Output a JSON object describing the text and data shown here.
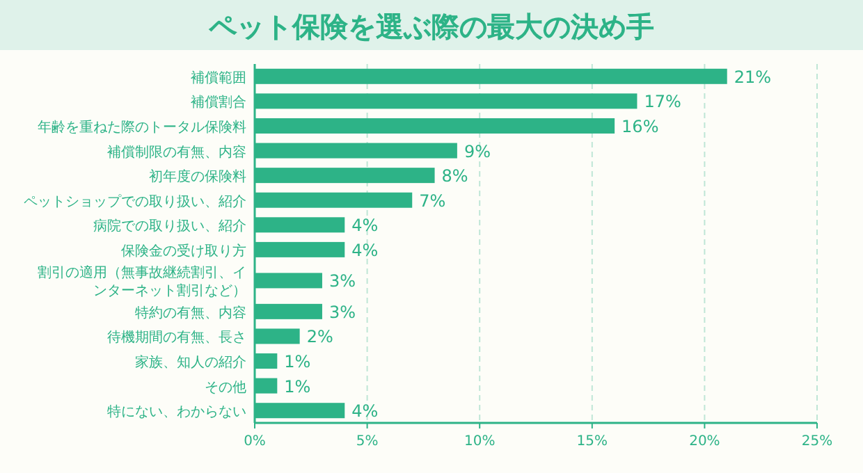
{
  "chart_data": {
    "type": "bar",
    "orientation": "horizontal",
    "title": "ペット保険を選ぶ際の最大の決め手",
    "categories": [
      "補償範囲",
      "補償割合",
      "年齢を重ねた際のトータル保険料",
      "補償制限の有無、内容",
      "初年度の保険料",
      "ペットショップでの取り扱い、紹介",
      "病院での取り扱い、紹介",
      "保険金の受け取り方",
      "割引の適用（無事故継続割引、インターネット割引など）",
      "特約の有無、内容",
      "待機期間の有無、長さ",
      "家族、知人の紹介",
      "その他",
      "特にない、わからない"
    ],
    "values": [
      21,
      17,
      16,
      9,
      8,
      7,
      4,
      4,
      3,
      3,
      2,
      1,
      1,
      4
    ],
    "value_labels": [
      "21%",
      "17%",
      "16%",
      "9%",
      "8%",
      "7%",
      "4%",
      "4%",
      "3%",
      "3%",
      "2%",
      "1%",
      "1%",
      "4%"
    ],
    "color": "#2db387",
    "xlim": [
      0,
      25
    ],
    "xticks": [
      {
        "value": 0,
        "label": "0%"
      },
      {
        "value": 5,
        "label": "5%"
      },
      {
        "value": 10,
        "label": "10%"
      },
      {
        "value": 15,
        "label": "15%"
      },
      {
        "value": 20,
        "label": "20%"
      },
      {
        "value": 25,
        "label": "25%"
      }
    ],
    "grid": "x"
  }
}
